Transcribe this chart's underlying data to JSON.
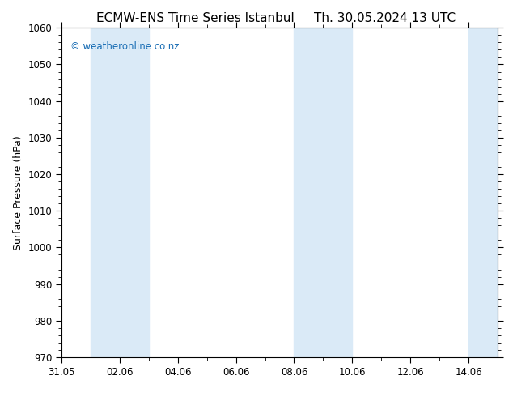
{
  "title_left": "ECMW-ENS Time Series Istanbul",
  "title_right": "Th. 30.05.2024 13 UTC",
  "ylabel": "Surface Pressure (hPa)",
  "ylim": [
    970,
    1060
  ],
  "yticks": [
    970,
    980,
    990,
    1000,
    1010,
    1020,
    1030,
    1040,
    1050,
    1060
  ],
  "xlim": [
    0,
    15
  ],
  "xtick_labels": [
    "31.05",
    "02.06",
    "04.06",
    "06.06",
    "08.06",
    "10.06",
    "12.06",
    "14.06"
  ],
  "xtick_positions": [
    0,
    2,
    4,
    6,
    8,
    10,
    12,
    14
  ],
  "shaded_bands": [
    {
      "x_start": 1,
      "x_end": 2
    },
    {
      "x_start": 2,
      "x_end": 3
    },
    {
      "x_start": 8,
      "x_end": 9
    },
    {
      "x_start": 9,
      "x_end": 10
    },
    {
      "x_start": 14,
      "x_end": 15
    }
  ],
  "band_color": "#daeaf7",
  "background_color": "#ffffff",
  "watermark_text": "© weatheronline.co.nz",
  "watermark_color": "#1a6eb5",
  "title_fontsize": 11,
  "label_fontsize": 9,
  "tick_fontsize": 8.5
}
